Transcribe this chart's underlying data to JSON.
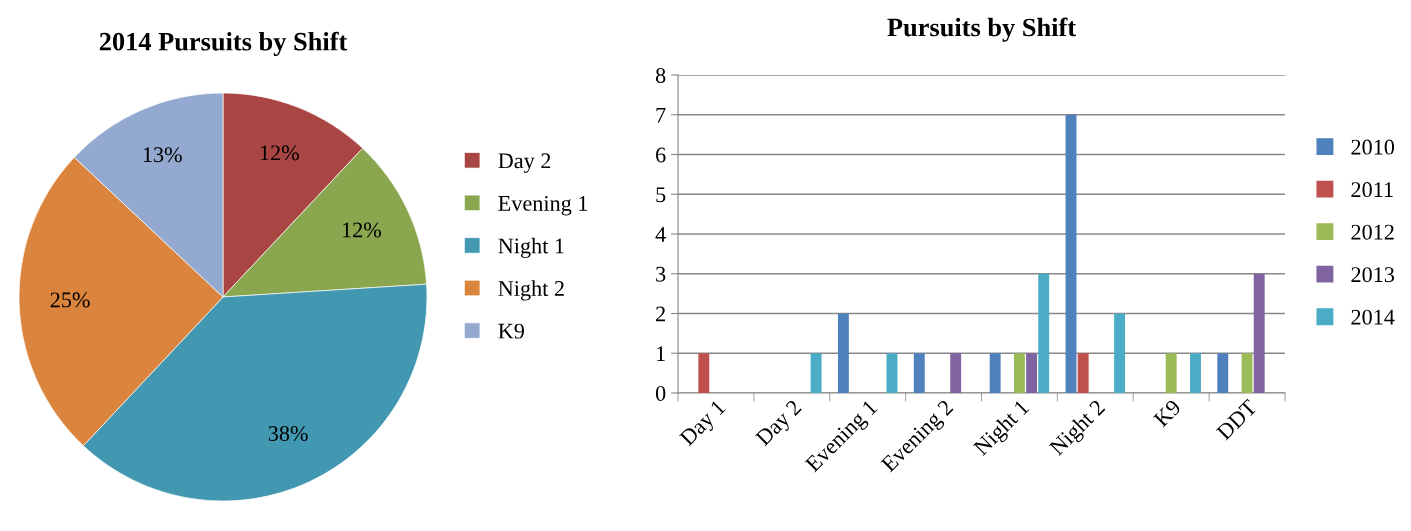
{
  "chart_data": [
    {
      "type": "pie",
      "title": "2014 Pursuits by Shift",
      "categories": [
        "Day 2",
        "Evening 1",
        "Night 1",
        "Night 2",
        "K9"
      ],
      "values": [
        12,
        12,
        38,
        25,
        13
      ],
      "colors": [
        "#a94543",
        "#8aa64e",
        "#4298b0",
        "#db843d",
        "#93a9cf"
      ],
      "value_labels": [
        "12%",
        "12%",
        "38%",
        "25%",
        "13%"
      ],
      "legend": "right"
    },
    {
      "type": "bar",
      "title": "Pursuits by Shift",
      "categories": [
        "Day 1",
        "Day 2",
        "Evening 1",
        "Evening 2",
        "Night 1",
        "Night 2",
        "K9",
        "DDT"
      ],
      "series": [
        {
          "name": "2010",
          "color": "#4f81bd",
          "values": [
            0,
            0,
            2,
            1,
            1,
            7,
            0,
            1
          ]
        },
        {
          "name": "2011",
          "color": "#c0504d",
          "values": [
            1,
            0,
            0,
            0,
            0,
            1,
            0,
            0
          ]
        },
        {
          "name": "2012",
          "color": "#9bbb59",
          "values": [
            0,
            0,
            0,
            0,
            1,
            0,
            1,
            1
          ]
        },
        {
          "name": "2013",
          "color": "#8064a2",
          "values": [
            0,
            0,
            0,
            1,
            1,
            0,
            0,
            3
          ]
        },
        {
          "name": "2014",
          "color": "#4bacc6",
          "values": [
            0,
            1,
            1,
            0,
            3,
            2,
            1,
            0
          ]
        }
      ],
      "ylim": [
        0,
        8
      ],
      "yticks": [
        0,
        1,
        2,
        3,
        4,
        5,
        6,
        7,
        8
      ],
      "grid": "y",
      "legend": "right"
    }
  ]
}
